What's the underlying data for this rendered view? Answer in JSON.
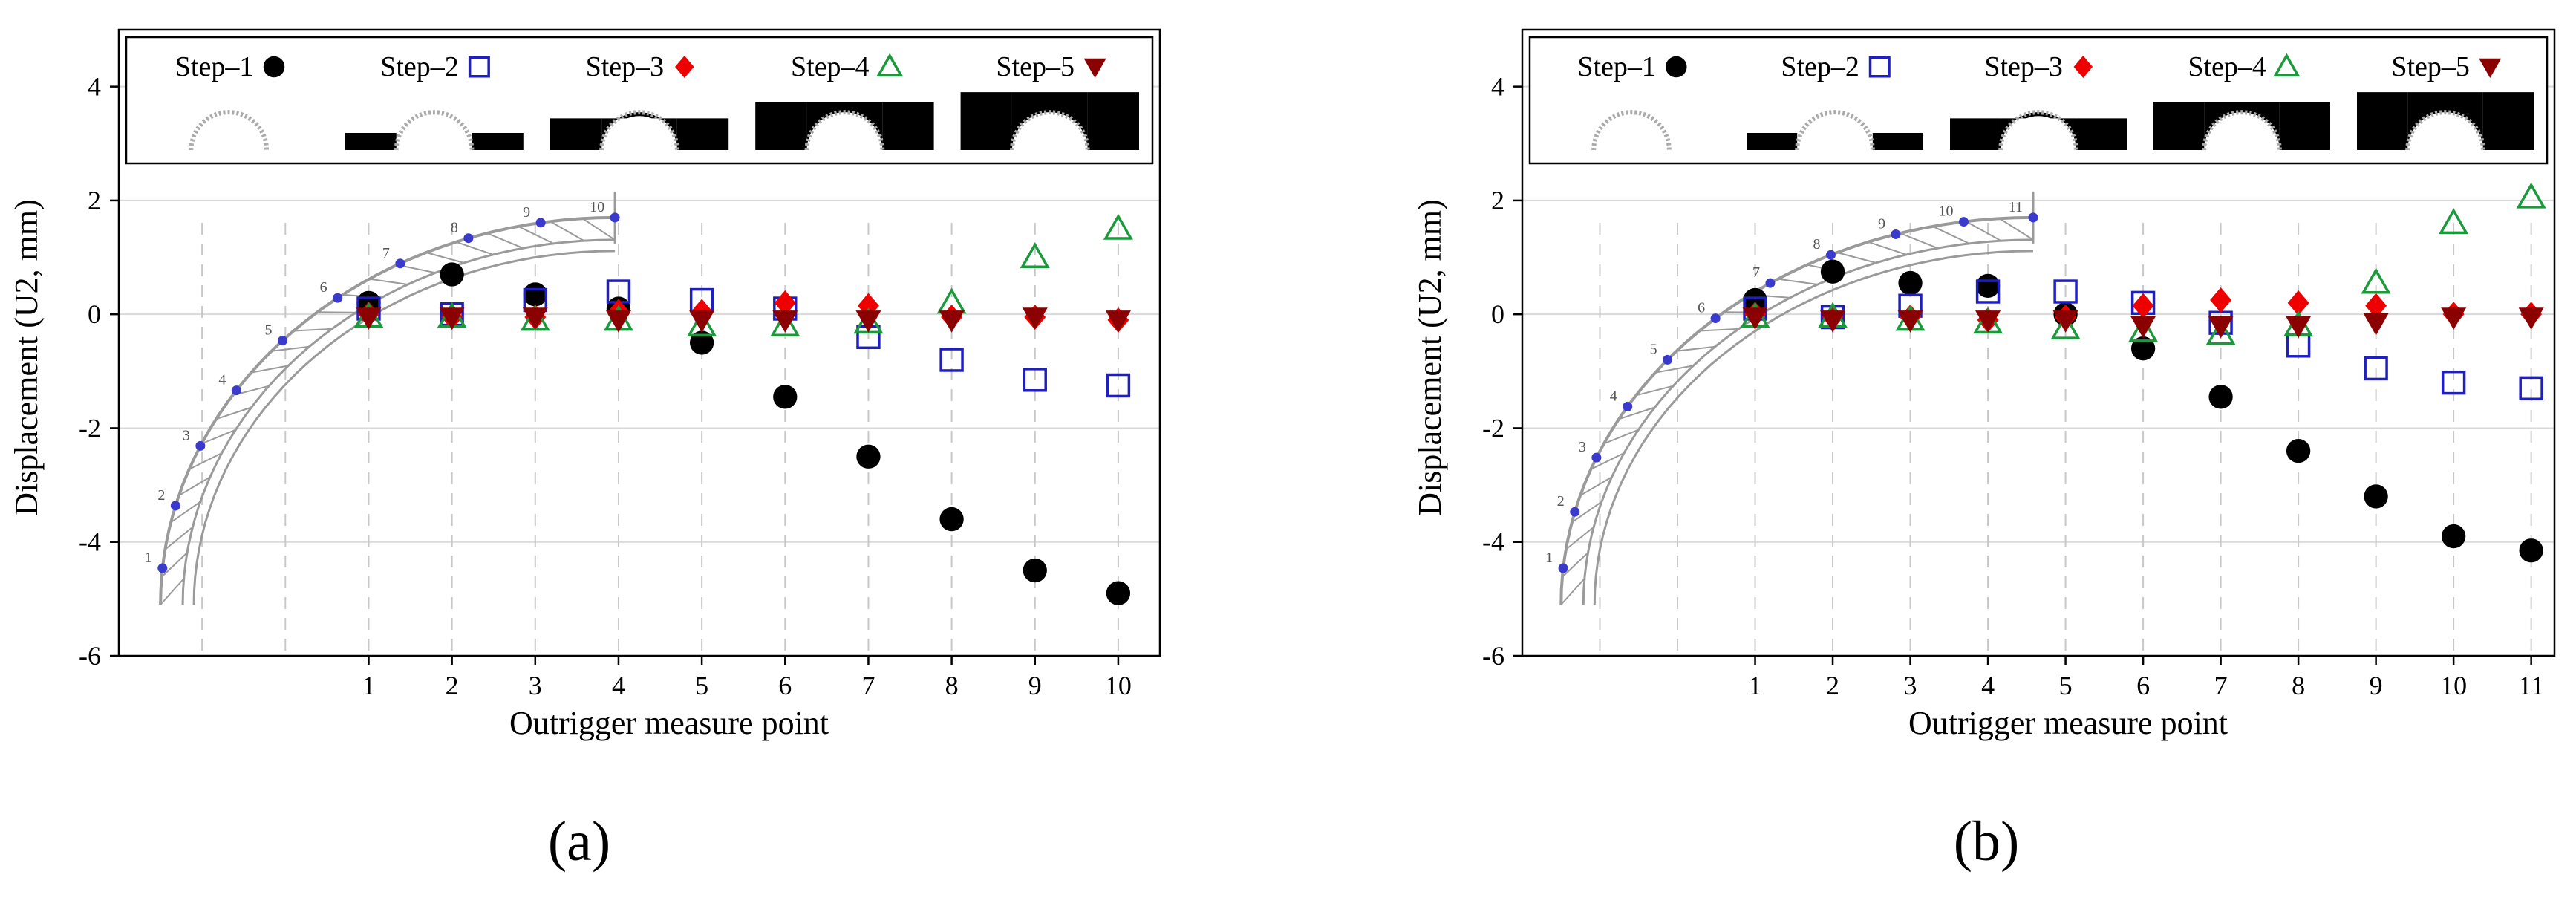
{
  "figure": {
    "panel_labels": [
      "(a)",
      "(b)"
    ],
    "colors": {
      "step1": "#000000",
      "step2": "#1f1fbf",
      "step3": "#ee0000",
      "step4": "#1a9a3a",
      "step5": "#8b0000",
      "grid": "#d9d9d9",
      "axis": "#000000",
      "truss_dot": "#3a3acc",
      "truss_line": "#9a9a9a"
    }
  },
  "chart_data": [
    {
      "type": "scatter",
      "panel": "(a)",
      "xlabel": "Outrigger measure point",
      "ylabel": "Displacement (U2, mm)",
      "xlim": [
        -2,
        10.5
      ],
      "ylim": [
        -6,
        5
      ],
      "yticks": [
        "4",
        "2",
        "0",
        "-2",
        "-4",
        "-6"
      ],
      "ytick_values": [
        4,
        2,
        0,
        -2,
        -4,
        -6
      ],
      "xticks": [
        "1",
        "2",
        "3",
        "4",
        "5",
        "6",
        "7",
        "8",
        "9",
        "10"
      ],
      "x": [
        1,
        2,
        3,
        4,
        5,
        6,
        7,
        8,
        9,
        10
      ],
      "legend": [
        "Step–1",
        "Step–2",
        "Step–3",
        "Step–4",
        "Step–5"
      ],
      "truss_labels": [
        "1",
        "2",
        "3",
        "4",
        "5",
        "6",
        "7",
        "8",
        "9",
        "10"
      ],
      "series": [
        {
          "name": "Step–1",
          "marker": "filled-circle",
          "values": [
            0.2,
            0.7,
            0.35,
            0.1,
            -0.5,
            -1.45,
            -2.5,
            -3.6,
            -4.5,
            -4.9
          ]
        },
        {
          "name": "Step–2",
          "marker": "open-square",
          "values": [
            0.1,
            0.0,
            0.25,
            0.4,
            0.25,
            0.1,
            -0.4,
            -0.8,
            -1.15,
            -1.25
          ]
        },
        {
          "name": "Step–3",
          "marker": "filled-diamond",
          "values": [
            0.0,
            -0.05,
            -0.05,
            0.05,
            0.05,
            0.2,
            0.15,
            -0.05,
            -0.05,
            -0.1
          ]
        },
        {
          "name": "Step–4",
          "marker": "open-triangle-up",
          "values": [
            -0.05,
            -0.05,
            -0.1,
            -0.1,
            -0.2,
            -0.2,
            -0.15,
            0.2,
            1.0,
            1.5
          ]
        },
        {
          "name": "Step–5",
          "marker": "filled-triangle-down",
          "values": [
            -0.05,
            -0.05,
            -0.05,
            -0.1,
            -0.1,
            -0.1,
            -0.1,
            -0.1,
            -0.05,
            -0.1
          ]
        }
      ]
    },
    {
      "type": "scatter",
      "panel": "(b)",
      "xlabel": "Outrigger measure point",
      "ylabel": "Displacement (U2, mm)",
      "xlim": [
        -2,
        11.3
      ],
      "ylim": [
        -6,
        5
      ],
      "yticks": [
        "4",
        "2",
        "0",
        "-2",
        "-4",
        "-6"
      ],
      "ytick_values": [
        4,
        2,
        0,
        -2,
        -4,
        -6
      ],
      "xticks": [
        "1",
        "2",
        "3",
        "4",
        "5",
        "6",
        "7",
        "8",
        "9",
        "10",
        "11"
      ],
      "x": [
        1,
        2,
        3,
        4,
        5,
        6,
        7,
        8,
        9,
        10,
        11
      ],
      "legend": [
        "Step–1",
        "Step–2",
        "Step–3",
        "Step–4",
        "Step–5"
      ],
      "truss_labels": [
        "1",
        "2",
        "3",
        "4",
        "5",
        "6",
        "7",
        "8",
        "9",
        "10",
        "11"
      ],
      "series": [
        {
          "name": "Step–1",
          "marker": "filled-circle",
          "values": [
            0.25,
            0.75,
            0.55,
            0.5,
            0.0,
            -0.6,
            -1.45,
            -2.4,
            -3.2,
            -3.9,
            -4.15
          ]
        },
        {
          "name": "Step–2",
          "marker": "open-square",
          "values": [
            0.1,
            -0.05,
            0.15,
            0.4,
            0.4,
            0.2,
            -0.15,
            -0.55,
            -0.95,
            -1.2,
            -1.3
          ]
        },
        {
          "name": "Step–3",
          "marker": "filled-diamond",
          "values": [
            0.0,
            -0.05,
            -0.05,
            -0.1,
            -0.05,
            0.15,
            0.25,
            0.2,
            0.15,
            0.0,
            0.0
          ]
        },
        {
          "name": "Step–4",
          "marker": "open-triangle-up",
          "values": [
            -0.05,
            -0.05,
            -0.1,
            -0.15,
            -0.25,
            -0.3,
            -0.35,
            -0.2,
            0.55,
            1.6,
            2.05
          ]
        },
        {
          "name": "Step–5",
          "marker": "filled-triangle-down",
          "values": [
            -0.05,
            -0.1,
            -0.1,
            -0.1,
            -0.1,
            -0.2,
            -0.2,
            -0.2,
            -0.15,
            -0.05,
            -0.05
          ]
        }
      ]
    }
  ]
}
